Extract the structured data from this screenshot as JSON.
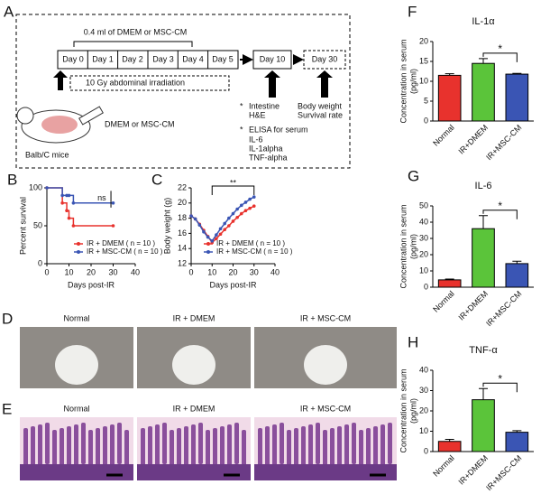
{
  "diagram": {
    "panel": "A",
    "dose": "0.4 ml of DMEM or MSC-CM",
    "days": [
      "Day 0",
      "Day 1",
      "Day 2",
      "Day 3",
      "Day 4",
      "Day 5"
    ],
    "day10": "Day 10",
    "day30": "Day 30",
    "irradiation": "10 Gy abdominal irradiation",
    "injection": "DMEM or MSC-CM",
    "mice": "Balb/C mice",
    "star": "*",
    "intestine": "Intestine",
    "he": "H&E",
    "elisa": "ELISA for serum",
    "assays": [
      "IL-6",
      "IL-1alpha",
      "TNF-alpha"
    ],
    "body_weight": "Body weight",
    "survival": "Survival rate"
  },
  "photos": [
    {
      "panel": "D",
      "labels": [
        "Normal",
        "IR + DMEM",
        "IR + MSC-CM"
      ]
    },
    {
      "panel": "E",
      "labels": [
        "Normal",
        "IR + DMEM",
        "IR + MSC-CM"
      ]
    }
  ],
  "chart_data": [
    {
      "type": "line",
      "panel": "B",
      "step": true,
      "xlabel": "Days post-IR",
      "ylabel": "Percent survival",
      "x": [
        0,
        7,
        9,
        10,
        12,
        30
      ],
      "xlim": [
        0,
        40
      ],
      "xticks": [
        0,
        10,
        20,
        30,
        40
      ],
      "ylim": [
        0,
        100
      ],
      "yticks": [
        0,
        50,
        100
      ],
      "annotation": "ns",
      "series": [
        {
          "name": "IR + DMEM ( n = 10 )",
          "color": "#e8322d",
          "values": [
            100,
            80,
            70,
            60,
            50,
            50
          ]
        },
        {
          "name": "IR + MSC-CM ( n = 10 )",
          "color": "#3a55b4",
          "values": [
            100,
            90,
            90,
            90,
            80,
            80
          ]
        }
      ]
    },
    {
      "type": "line",
      "panel": "C",
      "step": false,
      "xlabel": "Days post-IR",
      "ylabel": "Body weight (g)",
      "x": [
        0,
        2,
        4,
        6,
        8,
        10,
        12,
        14,
        16,
        18,
        20,
        22,
        24,
        26,
        28,
        30
      ],
      "xlim": [
        0,
        40
      ],
      "xticks": [
        0,
        10,
        20,
        30,
        40
      ],
      "ylim": [
        12,
        22
      ],
      "yticks": [
        12,
        14,
        16,
        18,
        20,
        22
      ],
      "annotation": "**",
      "series": [
        {
          "name": "IR + DMEM ( n = 10 )",
          "color": "#e8322d",
          "values": [
            18.3,
            17.9,
            17.2,
            16.4,
            15.6,
            14.8,
            15.3,
            15.9,
            16.5,
            17.0,
            17.6,
            18.1,
            18.6,
            19.0,
            19.3,
            19.6
          ]
        },
        {
          "name": "IR + MSC-CM ( n = 10 )",
          "color": "#3a55b4",
          "values": [
            18.3,
            17.9,
            17.1,
            16.2,
            15.5,
            15.0,
            15.8,
            16.6,
            17.3,
            18.0,
            18.6,
            19.2,
            19.7,
            20.1,
            20.5,
            20.8
          ]
        }
      ]
    },
    {
      "type": "bar",
      "panel": "F",
      "title": "IL-1α",
      "ylabel": [
        "Concentration in serum",
        "(pg/ml)"
      ],
      "categories": [
        "Normal",
        "IR+DMEM",
        "IR+MSC-CM"
      ],
      "values": [
        11.5,
        14.5,
        11.8
      ],
      "errors": [
        0.4,
        1.2,
        0.2
      ],
      "colors": [
        "#e8322d",
        "#5bc43a",
        "#3a55b4"
      ],
      "ylim": [
        0,
        20
      ],
      "yticks": [
        0,
        5,
        10,
        15,
        20
      ],
      "annotation": "*"
    },
    {
      "type": "bar",
      "panel": "G",
      "title": "IL-6",
      "ylabel": [
        "Concentration in serum",
        "(pg/ml)"
      ],
      "categories": [
        "Normal",
        "IR+DMEM",
        "IR+MSC-CM"
      ],
      "values": [
        4.5,
        36,
        14.5
      ],
      "errors": [
        0.5,
        8,
        1.5
      ],
      "colors": [
        "#e8322d",
        "#5bc43a",
        "#3a55b4"
      ],
      "ylim": [
        0,
        50
      ],
      "yticks": [
        0,
        10,
        20,
        30,
        40,
        50
      ],
      "annotation": "*"
    },
    {
      "type": "bar",
      "panel": "H",
      "title": "TNF-α",
      "ylabel": [
        "Concentration in serum",
        "(pg/ml)"
      ],
      "categories": [
        "Normal",
        "IR+DMEM",
        "IR+MSC-CM"
      ],
      "values": [
        5,
        25.5,
        9.5
      ],
      "errors": [
        1,
        5.5,
        0.8
      ],
      "colors": [
        "#e8322d",
        "#5bc43a",
        "#3a55b4"
      ],
      "ylim": [
        0,
        40
      ],
      "yticks": [
        0,
        10,
        20,
        30,
        40
      ],
      "annotation": "*"
    }
  ]
}
